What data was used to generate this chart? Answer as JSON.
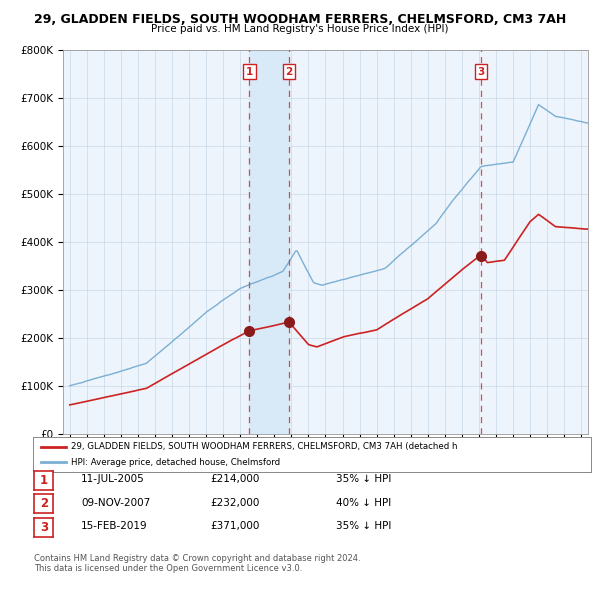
{
  "title_line1": "29, GLADDEN FIELDS, SOUTH WOODHAM FERRERS, CHELMSFORD, CM3 7AH",
  "title_line2": "Price paid vs. HM Land Registry's House Price Index (HPI)",
  "legend_label_red": "29, GLADDEN FIELDS, SOUTH WOODHAM FERRERS, CHELMSFORD, CM3 7AH (detached h",
  "legend_label_blue": "HPI: Average price, detached house, Chelmsford",
  "footer_line1": "Contains HM Land Registry data © Crown copyright and database right 2024.",
  "footer_line2": "This data is licensed under the Open Government Licence v3.0.",
  "transactions": [
    {
      "num": 1,
      "date": "11-JUL-2005",
      "price": "£214,000",
      "hpi": "35% ↓ HPI",
      "x_year": 2005.53,
      "y_price": 214000
    },
    {
      "num": 2,
      "date": "09-NOV-2007",
      "price": "£232,000",
      "hpi": "40% ↓ HPI",
      "x_year": 2007.86,
      "y_price": 232000
    },
    {
      "num": 3,
      "date": "15-FEB-2019",
      "price": "£371,000",
      "hpi": "35% ↓ HPI",
      "x_year": 2019.12,
      "y_price": 371000
    }
  ],
  "hpi_color": "#7aafd4",
  "red_color": "#cc2222",
  "shaded_color": "#d8eaf8",
  "dashed_color": "#cc3333",
  "bg_color": "#eef4fb",
  "grid_color": "#c8d8e8",
  "ylim": [
    0,
    800000
  ],
  "xlim_start": 1994.6,
  "xlim_end": 2025.4,
  "yticks": [
    0,
    100000,
    200000,
    300000,
    400000,
    500000,
    600000,
    700000,
    800000
  ],
  "ytick_labels": [
    "£0",
    "£100K",
    "£200K",
    "£300K",
    "£400K",
    "£500K",
    "£600K",
    "£700K",
    "£800K"
  ]
}
